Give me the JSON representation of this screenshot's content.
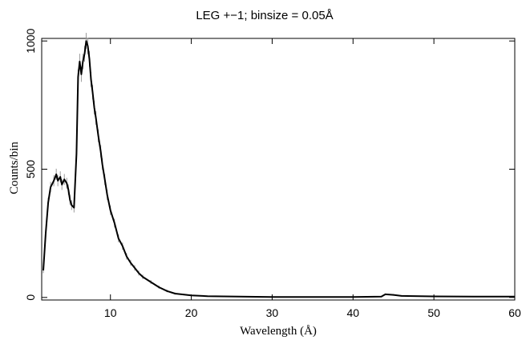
{
  "chart_data": {
    "type": "line",
    "title": "LEG +−1; binsize = 0.05Å",
    "xlabel": "Wavelength (Å)",
    "ylabel": "Counts/bin",
    "xlim": [
      1.5,
      60
    ],
    "ylim": [
      -10,
      1010
    ],
    "x_ticks": [
      10,
      20,
      30,
      40,
      50,
      60
    ],
    "x_tick_labels": [
      "10",
      "20",
      "30",
      "40",
      "50",
      "60"
    ],
    "y_ticks": [
      0,
      500,
      1000
    ],
    "y_tick_labels": [
      "0",
      "500",
      "1000"
    ],
    "grid": false,
    "legend": "none",
    "series": [
      {
        "color": "#000000",
        "error_bar_color": "#9a9a9a",
        "x": [
          1.7,
          2.0,
          2.3,
          2.6,
          3.0,
          3.3,
          3.5,
          3.8,
          4.0,
          4.3,
          4.6,
          4.8,
          5.0,
          5.2,
          5.5,
          5.8,
          6.0,
          6.2,
          6.4,
          6.6,
          6.8,
          7.0,
          7.2,
          7.4,
          7.6,
          7.8,
          8.0,
          8.2,
          8.5,
          8.8,
          9.0,
          9.3,
          9.6,
          10.0,
          10.5,
          11.0,
          11.5,
          12.0,
          12.5,
          13.0,
          13.5,
          14.0,
          15.0,
          16.0,
          17.0,
          18.0,
          20.0,
          22.0,
          24.0,
          26.0,
          30.0,
          35.0,
          40.0,
          43.5,
          44.0,
          45.0,
          46.0,
          50.0,
          55.0,
          60.0
        ],
        "y": [
          105,
          250,
          370,
          430,
          455,
          480,
          455,
          470,
          440,
          460,
          445,
          420,
          380,
          360,
          350,
          560,
          860,
          920,
          870,
          920,
          950,
          1000,
          980,
          930,
          850,
          800,
          740,
          700,
          630,
          570,
          520,
          460,
          400,
          340,
          290,
          230,
          200,
          160,
          135,
          115,
          95,
          80,
          60,
          40,
          25,
          15,
          8,
          5,
          4,
          3,
          2,
          2,
          2,
          3,
          12,
          10,
          6,
          4,
          3,
          3
        ]
      }
    ]
  }
}
